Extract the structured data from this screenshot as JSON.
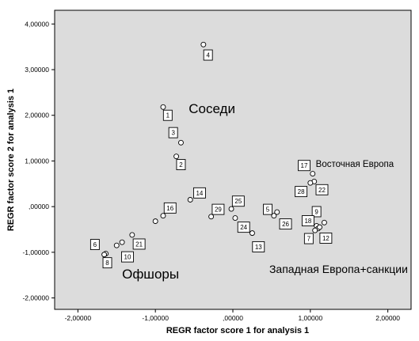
{
  "chart_data": {
    "type": "scatter",
    "xlabel": "REGR factor score   1 for analysis 1",
    "ylabel": "REGR factor score   2 for analysis 1",
    "xlim": [
      -2.3,
      2.3
    ],
    "ylim": [
      -2.25,
      4.3
    ],
    "x_ticks": [
      -2,
      -1,
      0,
      1,
      2
    ],
    "x_tick_labels": [
      "-2,00000",
      "-1,00000",
      ",00000",
      "1,00000",
      "2,00000"
    ],
    "y_ticks": [
      -2,
      -1,
      0,
      1,
      2,
      3,
      4
    ],
    "y_tick_labels": [
      "-2,00000",
      "-1,00000",
      ",00000",
      "1,00000",
      "2,00000",
      "3,00000",
      "4,00000"
    ],
    "grid": false,
    "colors": {
      "plot_background": "#dcdcdc",
      "marker_fill": "#ffffff",
      "marker_stroke": "#000000",
      "text": "#000000"
    },
    "points": [
      {
        "x": -0.38,
        "y": 3.55
      },
      {
        "x": -0.9,
        "y": 2.18
      },
      {
        "x": -0.67,
        "y": 1.4
      },
      {
        "x": -0.73,
        "y": 1.1
      },
      {
        "x": -0.55,
        "y": 0.15
      },
      {
        "x": -0.9,
        "y": -0.2
      },
      {
        "x": -1.0,
        "y": -0.32
      },
      {
        "x": -0.28,
        "y": -0.22
      },
      {
        "x": -0.02,
        "y": -0.05
      },
      {
        "x": 0.03,
        "y": -0.25
      },
      {
        "x": 0.25,
        "y": -0.58
      },
      {
        "x": 0.53,
        "y": -0.2
      },
      {
        "x": 0.57,
        "y": -0.12
      },
      {
        "x": 1.03,
        "y": 0.72
      },
      {
        "x": 1.05,
        "y": 0.55
      },
      {
        "x": 1.0,
        "y": 0.52
      },
      {
        "x": 1.08,
        "y": -0.42
      },
      {
        "x": 1.1,
        "y": -0.48
      },
      {
        "x": 1.12,
        "y": -0.45
      },
      {
        "x": 1.06,
        "y": -0.52
      },
      {
        "x": 1.18,
        "y": -0.35
      },
      {
        "x": -1.3,
        "y": -0.62
      },
      {
        "x": -1.43,
        "y": -0.78
      },
      {
        "x": -1.5,
        "y": -0.85
      },
      {
        "x": -1.64,
        "y": -1.03
      },
      {
        "x": -1.66,
        "y": -1.05
      }
    ],
    "point_labels": [
      {
        "text": "4",
        "x": -0.32,
        "y": 3.32
      },
      {
        "text": "1",
        "x": -0.84,
        "y": 2.0
      },
      {
        "text": "3",
        "x": -0.77,
        "y": 1.62
      },
      {
        "text": "2",
        "x": -0.67,
        "y": 0.92
      },
      {
        "text": "14",
        "x": -0.43,
        "y": 0.3
      },
      {
        "text": "16",
        "x": -0.81,
        "y": -0.03
      },
      {
        "text": "29",
        "x": -0.19,
        "y": -0.06
      },
      {
        "text": "25",
        "x": 0.07,
        "y": 0.12
      },
      {
        "text": "24",
        "x": 0.14,
        "y": -0.45
      },
      {
        "text": "13",
        "x": 0.33,
        "y": -0.88
      },
      {
        "text": "5",
        "x": 0.45,
        "y": -0.06
      },
      {
        "text": "26",
        "x": 0.68,
        "y": -0.38
      },
      {
        "text": "17",
        "x": 0.92,
        "y": 0.9
      },
      {
        "text": "28",
        "x": 0.88,
        "y": 0.33
      },
      {
        "text": "22",
        "x": 1.15,
        "y": 0.37
      },
      {
        "text": "9",
        "x": 1.08,
        "y": -0.11
      },
      {
        "text": "18",
        "x": 0.97,
        "y": -0.31
      },
      {
        "text": "7",
        "x": 0.98,
        "y": -0.7
      },
      {
        "text": "12",
        "x": 1.2,
        "y": -0.69
      },
      {
        "text": "21",
        "x": -1.21,
        "y": -0.82
      },
      {
        "text": "10",
        "x": -1.36,
        "y": -1.1
      },
      {
        "text": "6",
        "x": -1.78,
        "y": -0.83
      },
      {
        "text": "8",
        "x": -1.62,
        "y": -1.23
      }
    ],
    "annotations": [
      {
        "text": "Соседи",
        "x": -0.57,
        "y": 2.05,
        "size": "big"
      },
      {
        "text": "Восточная Европа",
        "x": 1.07,
        "y": 0.87,
        "size": "small"
      },
      {
        "text": "Западная Европа+санкции",
        "x": 0.47,
        "y": -1.45,
        "size": "med"
      },
      {
        "text": "Офшоры",
        "x": -1.43,
        "y": -1.57,
        "size": "big"
      }
    ]
  }
}
